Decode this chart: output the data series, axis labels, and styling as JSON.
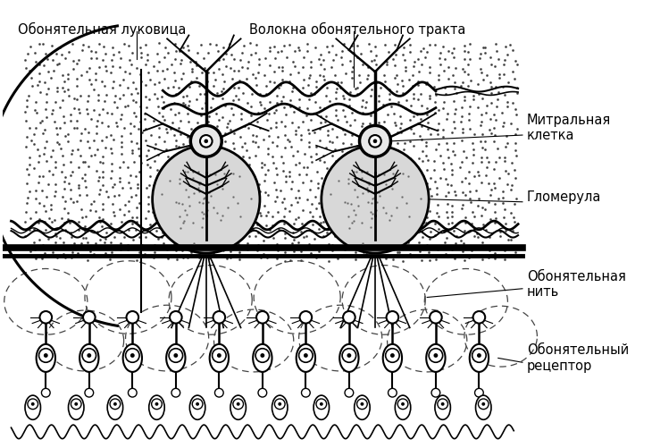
{
  "bg_color": "#ffffff",
  "labels": {
    "olfactory_bulb": "Обонятельная луковица",
    "tract_fibers": "Волокна обонятельного тракта",
    "mitral_cell": "Митральная\nклетка",
    "glomerula": "Гломерула",
    "olfactory_thread": "Обонятельная\nнить",
    "olfactory_receptor": "Обонятельный\nрецептор"
  },
  "figw": 7.3,
  "figh": 5.01,
  "dpi": 100
}
